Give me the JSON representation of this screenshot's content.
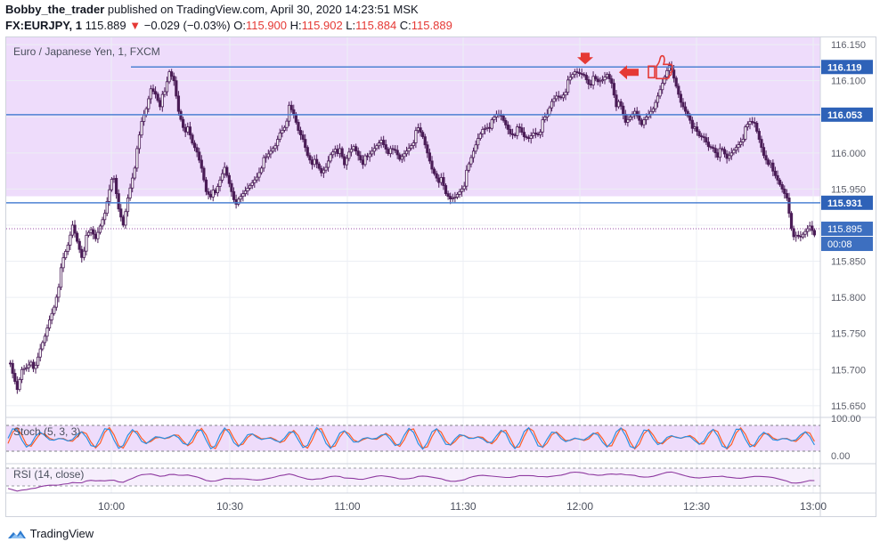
{
  "header": {
    "author": "Bobby_the_trader",
    "published_text": "published on TradingView.com, April 30, 2020 14:23:51 MSK",
    "symbol": "FX:EURJPY, 1",
    "last": "115.889",
    "change": "−0.029 (−0.03%)",
    "o_label": "O:",
    "o": "115.900",
    "h_label": "H:",
    "h": "115.902",
    "l_label": "L:",
    "l": "115.884",
    "c_label": "C:",
    "c": "115.889"
  },
  "legend": {
    "main": "Euro / Japanese Yen, 1, FXCM",
    "stoch": "Stoch (5, 3, 3)",
    "rsi": "RSI (14, close)"
  },
  "price_axis": {
    "ticks": [
      "116.150",
      "116.100",
      "116.050",
      "116.000",
      "115.950",
      "115.900",
      "115.850",
      "115.800",
      "115.750",
      "115.700",
      "115.650"
    ],
    "tags": [
      {
        "label": "116.119",
        "kind": "line"
      },
      {
        "label": "116.053",
        "kind": "line"
      },
      {
        "label": "115.931",
        "kind": "line"
      },
      {
        "label": "115.895",
        "kind": "price"
      },
      {
        "label": "00:08",
        "kind": "timer"
      }
    ]
  },
  "stoch_axis": [
    "100.00",
    "0.00"
  ],
  "time_axis": [
    "10:00",
    "10:30",
    "11:00",
    "11:30",
    "12:00",
    "12:30",
    "13:00"
  ],
  "footer": {
    "brand": "TradingView"
  },
  "colors": {
    "zone": "#eedcfb",
    "candle": "#4a1c57",
    "hline": "#4d82d3",
    "tag": "#2e62b8",
    "price_tag": "#3d6fc0",
    "stoch_k": "#2d8fe0",
    "stoch_d": "#ff5b25",
    "rsi": "#8e3aa0",
    "marker": "#e53935"
  },
  "chart_data": {
    "type": "candlestick",
    "symbol": "EURJPY",
    "interval": "1",
    "ylim": [
      115.635,
      116.16
    ],
    "horizontal_levels": [
      116.119,
      116.053,
      115.931
    ],
    "last_price": 115.895,
    "range_zone": [
      115.94,
      116.16
    ],
    "x_ticks": [
      "10:00",
      "10:30",
      "11:00",
      "11:30",
      "12:00",
      "12:30",
      "13:00"
    ],
    "close_path": [
      [
        0,
        115.715
      ],
      [
        2,
        115.69
      ],
      [
        4,
        115.67
      ],
      [
        6,
        115.7
      ],
      [
        8,
        115.705
      ],
      [
        10,
        115.715
      ],
      [
        12,
        115.7
      ],
      [
        14,
        115.725
      ],
      [
        16,
        115.745
      ],
      [
        18,
        115.77
      ],
      [
        20,
        115.79
      ],
      [
        22,
        115.82
      ],
      [
        24,
        115.85
      ],
      [
        26,
        115.87
      ],
      [
        28,
        115.9
      ],
      [
        30,
        115.88
      ],
      [
        32,
        115.86
      ],
      [
        34,
        115.88
      ],
      [
        36,
        115.89
      ],
      [
        38,
        115.88
      ],
      [
        40,
        115.9
      ],
      [
        42,
        115.92
      ],
      [
        44,
        115.955
      ],
      [
        46,
        115.96
      ],
      [
        48,
        115.92
      ],
      [
        50,
        115.9
      ],
      [
        52,
        115.94
      ],
      [
        54,
        115.97
      ],
      [
        56,
        116.0
      ],
      [
        58,
        116.04
      ],
      [
        60,
        116.06
      ],
      [
        62,
        116.09
      ],
      [
        64,
        116.085
      ],
      [
        66,
        116.07
      ],
      [
        68,
        116.08
      ],
      [
        70,
        116.11
      ],
      [
        72,
        116.1
      ],
      [
        74,
        116.06
      ],
      [
        76,
        116.04
      ],
      [
        78,
        116.03
      ],
      [
        80,
        116.01
      ],
      [
        82,
        116.0
      ],
      [
        84,
        115.98
      ],
      [
        86,
        115.95
      ],
      [
        88,
        115.945
      ],
      [
        90,
        115.94
      ],
      [
        92,
        115.96
      ],
      [
        94,
        115.98
      ],
      [
        96,
        115.96
      ],
      [
        98,
        115.94
      ],
      [
        100,
        115.93
      ],
      [
        102,
        115.94
      ],
      [
        104,
        115.95
      ],
      [
        106,
        115.96
      ],
      [
        108,
        115.97
      ],
      [
        110,
        115.985
      ],
      [
        112,
        115.99
      ],
      [
        114,
        116.0
      ],
      [
        116,
        116.01
      ],
      [
        118,
        116.03
      ],
      [
        120,
        116.04
      ],
      [
        122,
        116.06
      ],
      [
        124,
        116.05
      ],
      [
        126,
        116.03
      ],
      [
        128,
        116.02
      ],
      [
        130,
        116.0
      ],
      [
        132,
        115.99
      ],
      [
        134,
        115.98
      ],
      [
        136,
        115.97
      ],
      [
        138,
        115.98
      ],
      [
        140,
        116.0
      ],
      [
        142,
        116.01
      ],
      [
        144,
        116.0
      ],
      [
        146,
        115.98
      ],
      [
        148,
        116.0
      ],
      [
        150,
        116.01
      ],
      [
        152,
        116.0
      ],
      [
        154,
        115.99
      ],
      [
        156,
        115.99
      ],
      [
        158,
        116.0
      ],
      [
        160,
        116.01
      ],
      [
        162,
        116.02
      ],
      [
        164,
        116.01
      ],
      [
        166,
        116.0
      ],
      [
        168,
        116.0
      ],
      [
        170,
        115.99
      ],
      [
        172,
        116.0
      ],
      [
        174,
        116.01
      ],
      [
        176,
        116.02
      ],
      [
        178,
        116.03
      ],
      [
        180,
        116.02
      ],
      [
        182,
        116.0
      ],
      [
        184,
        115.98
      ],
      [
        186,
        115.97
      ],
      [
        188,
        115.96
      ],
      [
        190,
        115.94
      ],
      [
        192,
        115.935
      ],
      [
        194,
        115.94
      ],
      [
        196,
        115.95
      ],
      [
        198,
        115.96
      ],
      [
        200,
        115.98
      ],
      [
        202,
        116.0
      ],
      [
        204,
        116.02
      ],
      [
        206,
        116.035
      ],
      [
        208,
        116.04
      ],
      [
        210,
        116.04
      ],
      [
        212,
        116.05
      ],
      [
        214,
        116.05
      ],
      [
        216,
        116.04
      ],
      [
        218,
        116.03
      ],
      [
        220,
        116.03
      ],
      [
        222,
        116.03
      ],
      [
        224,
        116.02
      ],
      [
        226,
        116.02
      ],
      [
        228,
        116.03
      ],
      [
        230,
        116.03
      ],
      [
        232,
        116.04
      ],
      [
        234,
        116.05
      ],
      [
        236,
        116.07
      ],
      [
        238,
        116.08
      ],
      [
        240,
        116.08
      ],
      [
        242,
        116.09
      ],
      [
        244,
        116.1
      ],
      [
        246,
        116.11
      ],
      [
        248,
        116.11
      ],
      [
        250,
        116.11
      ],
      [
        252,
        116.1
      ],
      [
        254,
        116.1
      ],
      [
        256,
        116.095
      ],
      [
        258,
        116.1
      ],
      [
        260,
        116.11
      ],
      [
        262,
        116.1
      ],
      [
        264,
        116.07
      ],
      [
        266,
        116.06
      ],
      [
        268,
        116.04
      ],
      [
        270,
        116.05
      ],
      [
        272,
        116.06
      ],
      [
        274,
        116.05
      ],
      [
        276,
        116.04
      ],
      [
        278,
        116.05
      ],
      [
        280,
        116.06
      ],
      [
        282,
        116.08
      ],
      [
        284,
        116.1
      ],
      [
        286,
        116.12
      ],
      [
        288,
        116.11
      ],
      [
        290,
        116.09
      ],
      [
        292,
        116.07
      ],
      [
        294,
        116.06
      ],
      [
        296,
        116.05
      ],
      [
        298,
        116.03
      ],
      [
        300,
        116.02
      ],
      [
        302,
        116.02
      ],
      [
        304,
        116.01
      ],
      [
        306,
        116.01
      ],
      [
        308,
        116.0
      ],
      [
        310,
        116.0
      ],
      [
        312,
        115.99
      ],
      [
        314,
        116.0
      ],
      [
        316,
        116.01
      ],
      [
        318,
        116.02
      ],
      [
        320,
        116.03
      ],
      [
        322,
        116.04
      ],
      [
        324,
        116.04
      ],
      [
        326,
        116.02
      ],
      [
        328,
        116.0
      ],
      [
        330,
        115.99
      ],
      [
        332,
        115.97
      ],
      [
        334,
        115.96
      ],
      [
        336,
        115.95
      ],
      [
        338,
        115.94
      ],
      [
        340,
        115.9
      ],
      [
        342,
        115.88
      ],
      [
        344,
        115.88
      ],
      [
        346,
        115.89
      ],
      [
        348,
        115.9
      ],
      [
        350,
        115.89
      ]
    ],
    "indicators": [
      {
        "name": "Stoch (5, 3, 3)",
        "levels": [
          100,
          0
        ],
        "series": [
          "%K",
          "%D"
        ]
      },
      {
        "name": "RSI (14, close)"
      }
    ]
  }
}
